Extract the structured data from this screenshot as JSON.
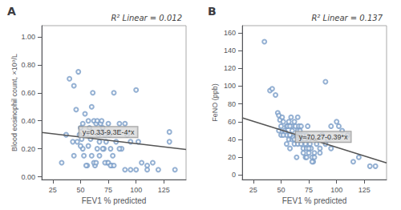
{
  "chart_data": [
    {
      "type": "scatter",
      "title": "A",
      "subtitle": "R² Linear = 0.012",
      "xlabel": "FEV1 % predicted",
      "ylabel": "Blood eosinophil count, ×10⁹/L",
      "xlim": [
        15,
        145
      ],
      "ylim": [
        -0.02,
        1.08
      ],
      "xticks": [
        25,
        50,
        75,
        100,
        125
      ],
      "yticks": [
        {
          "value": 0.0,
          "label": "0.00"
        },
        {
          "value": 0.2,
          "label": "0.20"
        },
        {
          "value": 0.4,
          "label": "0.40"
        },
        {
          "value": 0.6,
          "label": "0.60"
        },
        {
          "value": 0.8,
          "label": "0.80"
        },
        {
          "value": 1.0,
          "label": "1.00"
        }
      ],
      "grid": false,
      "series": [
        {
          "type": "scatter",
          "color": "#7b9ec8",
          "marker": "emptyCircle",
          "x": [
            33,
            37,
            40,
            43,
            44,
            46,
            48,
            49,
            50,
            51,
            52,
            53,
            54,
            55,
            56,
            57,
            58,
            59,
            60,
            61,
            62,
            63,
            64,
            65,
            65,
            66,
            67,
            68,
            69,
            70,
            71,
            72,
            73,
            74,
            75,
            76,
            77,
            78,
            79,
            80,
            82,
            85,
            87,
            90,
            92,
            95,
            100,
            102,
            105,
            110,
            115,
            120,
            130,
            135,
            44,
            47,
            50,
            52,
            55,
            57,
            60,
            62,
            64,
            67,
            70,
            72,
            75,
            77,
            80,
            85,
            90,
            95,
            100,
            110,
            130
          ],
          "values": [
            0.1,
            0.3,
            0.7,
            0.25,
            0.65,
            0.48,
            0.75,
            0.3,
            0.35,
            0.27,
            0.2,
            0.15,
            0.45,
            0.3,
            0.08,
            0.4,
            0.35,
            0.27,
            0.5,
            0.6,
            0.4,
            0.08,
            0.38,
            0.2,
            0.4,
            0.3,
            0.15,
            0.38,
            0.4,
            0.35,
            0.2,
            0.3,
            0.25,
            0.1,
            0.38,
            0.3,
            0.2,
            0.08,
            0.15,
            0.6,
            0.25,
            0.38,
            0.2,
            0.38,
            0.3,
            0.25,
            0.05,
            0.25,
            0.1,
            0.08,
            0.1,
            0.05,
            0.25,
            0.05,
            0.15,
            0.25,
            0.22,
            0.38,
            0.08,
            0.22,
            0.15,
            0.1,
            0.1,
            0.25,
            0.2,
            0.1,
            0.1,
            0.08,
            0.08,
            0.2,
            0.05,
            0.05,
            0.62,
            0.05,
            0.32
          ]
        },
        {
          "type": "line",
          "color": "#555555",
          "x": [
            15,
            145
          ],
          "values": [
            0.31605,
            0.19515
          ]
        }
      ],
      "annotations": [
        {
          "text": "y=0.33-9.3E-4*x",
          "x": 75,
          "y": 0.32
        }
      ]
    },
    {
      "type": "scatter",
      "title": "B",
      "subtitle": "R² Linear = 0.137",
      "xlabel": "FEV1 % predicted",
      "ylabel": "FeNO (ppb)",
      "xlim": [
        15,
        145
      ],
      "ylim": [
        -5,
        168
      ],
      "xticks": [
        25,
        50,
        75,
        100,
        125
      ],
      "yticks": [
        0,
        20,
        40,
        60,
        80,
        100,
        120,
        140,
        160
      ],
      "grid": false,
      "series": [
        {
          "type": "scatter",
          "color": "#7b9ec8",
          "marker": "emptyCircle",
          "x": [
            35,
            40,
            42,
            45,
            47,
            48,
            49,
            50,
            50,
            51,
            52,
            53,
            54,
            55,
            55,
            56,
            57,
            57,
            58,
            58,
            59,
            60,
            60,
            61,
            62,
            62,
            63,
            64,
            64,
            65,
            65,
            66,
            67,
            67,
            68,
            68,
            69,
            70,
            70,
            71,
            72,
            72,
            73,
            73,
            74,
            75,
            75,
            76,
            77,
            78,
            79,
            80,
            82,
            85,
            87,
            90,
            92,
            95,
            100,
            102,
            105,
            110,
            115,
            120,
            130,
            135,
            48,
            52,
            55,
            58,
            60,
            62,
            65,
            68,
            70,
            73,
            75,
            78,
            80,
            85,
            90,
            95
          ],
          "values": [
            150,
            95,
            97,
            90,
            70,
            67,
            62,
            55,
            45,
            65,
            60,
            50,
            48,
            45,
            55,
            55,
            40,
            60,
            45,
            30,
            65,
            40,
            55,
            42,
            35,
            60,
            55,
            45,
            20,
            65,
            50,
            55,
            50,
            40,
            45,
            55,
            40,
            45,
            30,
            40,
            35,
            20,
            45,
            30,
            55,
            40,
            25,
            35,
            30,
            20,
            15,
            25,
            35,
            30,
            45,
            105,
            40,
            55,
            60,
            55,
            50,
            45,
            15,
            20,
            10,
            10,
            50,
            45,
            35,
            55,
            50,
            40,
            35,
            35,
            25,
            20,
            30,
            15,
            20,
            25,
            35,
            30
          ]
        },
        {
          "type": "line",
          "color": "#555555",
          "x": [
            15,
            145
          ],
          "values": [
            64.42,
            13.72
          ]
        }
      ],
      "annotations": [
        {
          "text": "y=70.27-0.39*x",
          "x": 88,
          "y": 43
        }
      ]
    }
  ]
}
